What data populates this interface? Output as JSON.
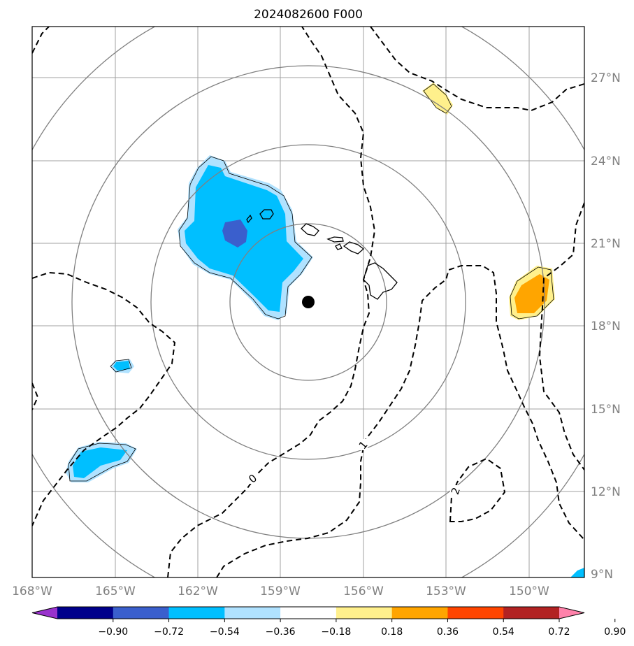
{
  "title": "2024082600 F000",
  "map": {
    "lon_labels": [
      "168°W",
      "165°W",
      "162°W",
      "159°W",
      "156°W",
      "153°W",
      "150°W"
    ],
    "lat_labels": [
      "27°N",
      "24°N",
      "21°N",
      "18°N",
      "15°N",
      "12°N",
      "9°N"
    ],
    "contour_labels": [
      "0",
      "1",
      "2"
    ],
    "center_marker": "storm-center",
    "colors": {
      "grid": "#a0a0a0",
      "range_rings": "#808080",
      "coast": "#000000",
      "contour": "#000000"
    }
  },
  "colorbar": {
    "tick_labels": [
      "−0.90",
      "−0.72",
      "−0.54",
      "−0.36",
      "−0.18",
      "0.18",
      "0.36",
      "0.54",
      "0.72",
      "0.90"
    ],
    "colors": [
      "#9932cc",
      "#00008b",
      "#3a5fcd",
      "#00bfff",
      "#b0e2ff",
      "#ffffff",
      "#fff08c",
      "#ffa500",
      "#ff4500",
      "#b22222",
      "#ff82ab"
    ]
  }
}
